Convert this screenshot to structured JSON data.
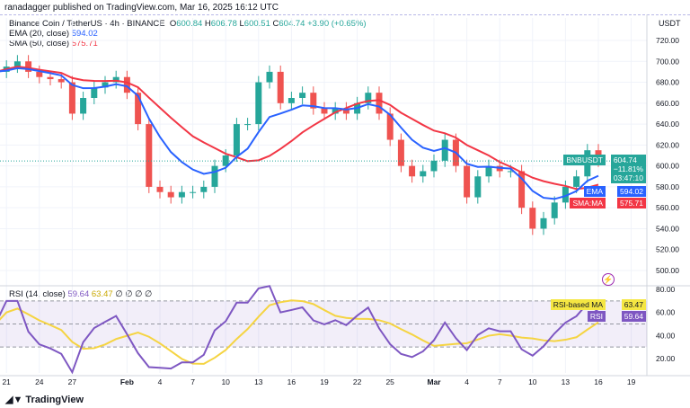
{
  "header": {
    "published": "ranadagger published on TradingView.com, Mar 16, 2025 16:12 UTC"
  },
  "legend": {
    "symbol": "Binance Coin / TetherUS · 4h · BINANCE",
    "o_label": "O",
    "o": "600.84",
    "h_label": "H",
    "h": "606.78",
    "l_label": "L",
    "l": "600.51",
    "c_label": "C",
    "c": "604.74",
    "change": "+3.90 (+0.65%)",
    "ema": "EMA (20, close)",
    "ema_val": "594.02",
    "sma": "SMA (50, close)",
    "sma_val": "575.71"
  },
  "rsi_legend": {
    "label": "RSI (14, close)",
    "rsi": "59.64",
    "ma": "63.47",
    "extra": "∅ ∅ ∅ ∅"
  },
  "tags": {
    "symbol": "BNBUSDT",
    "price": "604.74",
    "pct": "−11.81%",
    "countdown": "03:47:10",
    "ema": "EMA",
    "ema_val": "594.02",
    "sma": "SMA:MA",
    "sma_val": "575.71",
    "rsi_ma": "RSI-based MA",
    "rsi_ma_val": "63.47",
    "rsi": "RSI",
    "rsi_val": "59.64"
  },
  "currency": "USDT",
  "brand": "TradingView",
  "colors": {
    "up": "#26a69a",
    "down": "#ef5350",
    "ema": "#2962ff",
    "sma": "#f23645",
    "rsi": "#7e57c2",
    "rsi_ma": "#f5d442"
  },
  "chart_data": {
    "type": "candlestick",
    "price_ticks": [
      720,
      700,
      680,
      660,
      640,
      620,
      600,
      580,
      560,
      540,
      520,
      500
    ],
    "ylim": [
      493,
      735
    ],
    "rsi_ticks": [
      80,
      60,
      40,
      20
    ],
    "rsi_bands": [
      70,
      50,
      30
    ],
    "x_ticks": [
      "21",
      "24",
      "27",
      "Feb",
      "4",
      "7",
      "10",
      "13",
      "16",
      "19",
      "22",
      "25",
      "Mar",
      "4",
      "7",
      "10",
      "13",
      "16",
      "19"
    ],
    "x_tick_days": [
      1,
      4,
      7,
      12,
      15,
      18,
      21,
      24,
      27,
      30,
      33,
      36,
      40,
      43,
      46,
      49,
      52,
      55,
      58
    ],
    "closes": [
      690,
      695,
      700,
      690,
      685,
      683,
      680,
      650,
      665,
      675,
      680,
      685,
      670,
      640,
      580,
      575,
      570,
      575,
      575,
      580,
      600,
      610,
      640,
      640,
      680,
      690,
      660,
      665,
      670,
      655,
      650,
      655,
      650,
      660,
      670,
      650,
      625,
      600,
      590,
      595,
      605,
      625,
      600,
      570,
      590,
      600,
      595,
      595,
      560,
      540,
      550,
      565,
      580,
      590,
      615,
      605
    ]
  }
}
